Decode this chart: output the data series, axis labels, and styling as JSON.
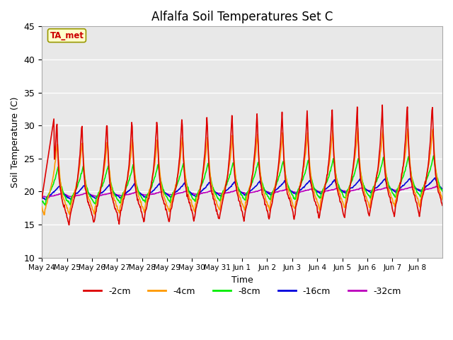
{
  "title": "Alfalfa Soil Temperatures Set C",
  "xlabel": "Time",
  "ylabel": "Soil Temperature (C)",
  "ylim": [
    10,
    45
  ],
  "background_color": "#e8e8e8",
  "series_colors": {
    "-2cm": "#dd0000",
    "-4cm": "#ff9900",
    "-8cm": "#00ee00",
    "-16cm": "#0000dd",
    "-32cm": "#bb00bb"
  },
  "legend_labels": [
    "-2cm",
    "-4cm",
    "-8cm",
    "-16cm",
    "-32cm"
  ],
  "ta_met_label": "TA_met",
  "ta_met_color": "#cc0000",
  "ta_met_bg": "#ffffcc",
  "x_tick_labels": [
    "May 24",
    "May 25",
    "May 26",
    "May 27",
    "May 28",
    "May 29",
    "May 30",
    "May 31",
    "Jun 1",
    "Jun 2",
    "Jun 3",
    "Jun 4",
    "Jun 5",
    "Jun 6",
    "Jun 7",
    "Jun 8"
  ],
  "y_ticks": [
    10,
    15,
    20,
    25,
    30,
    35,
    40,
    45
  ],
  "grid_color": "#ffffff",
  "linewidth": 1.2
}
